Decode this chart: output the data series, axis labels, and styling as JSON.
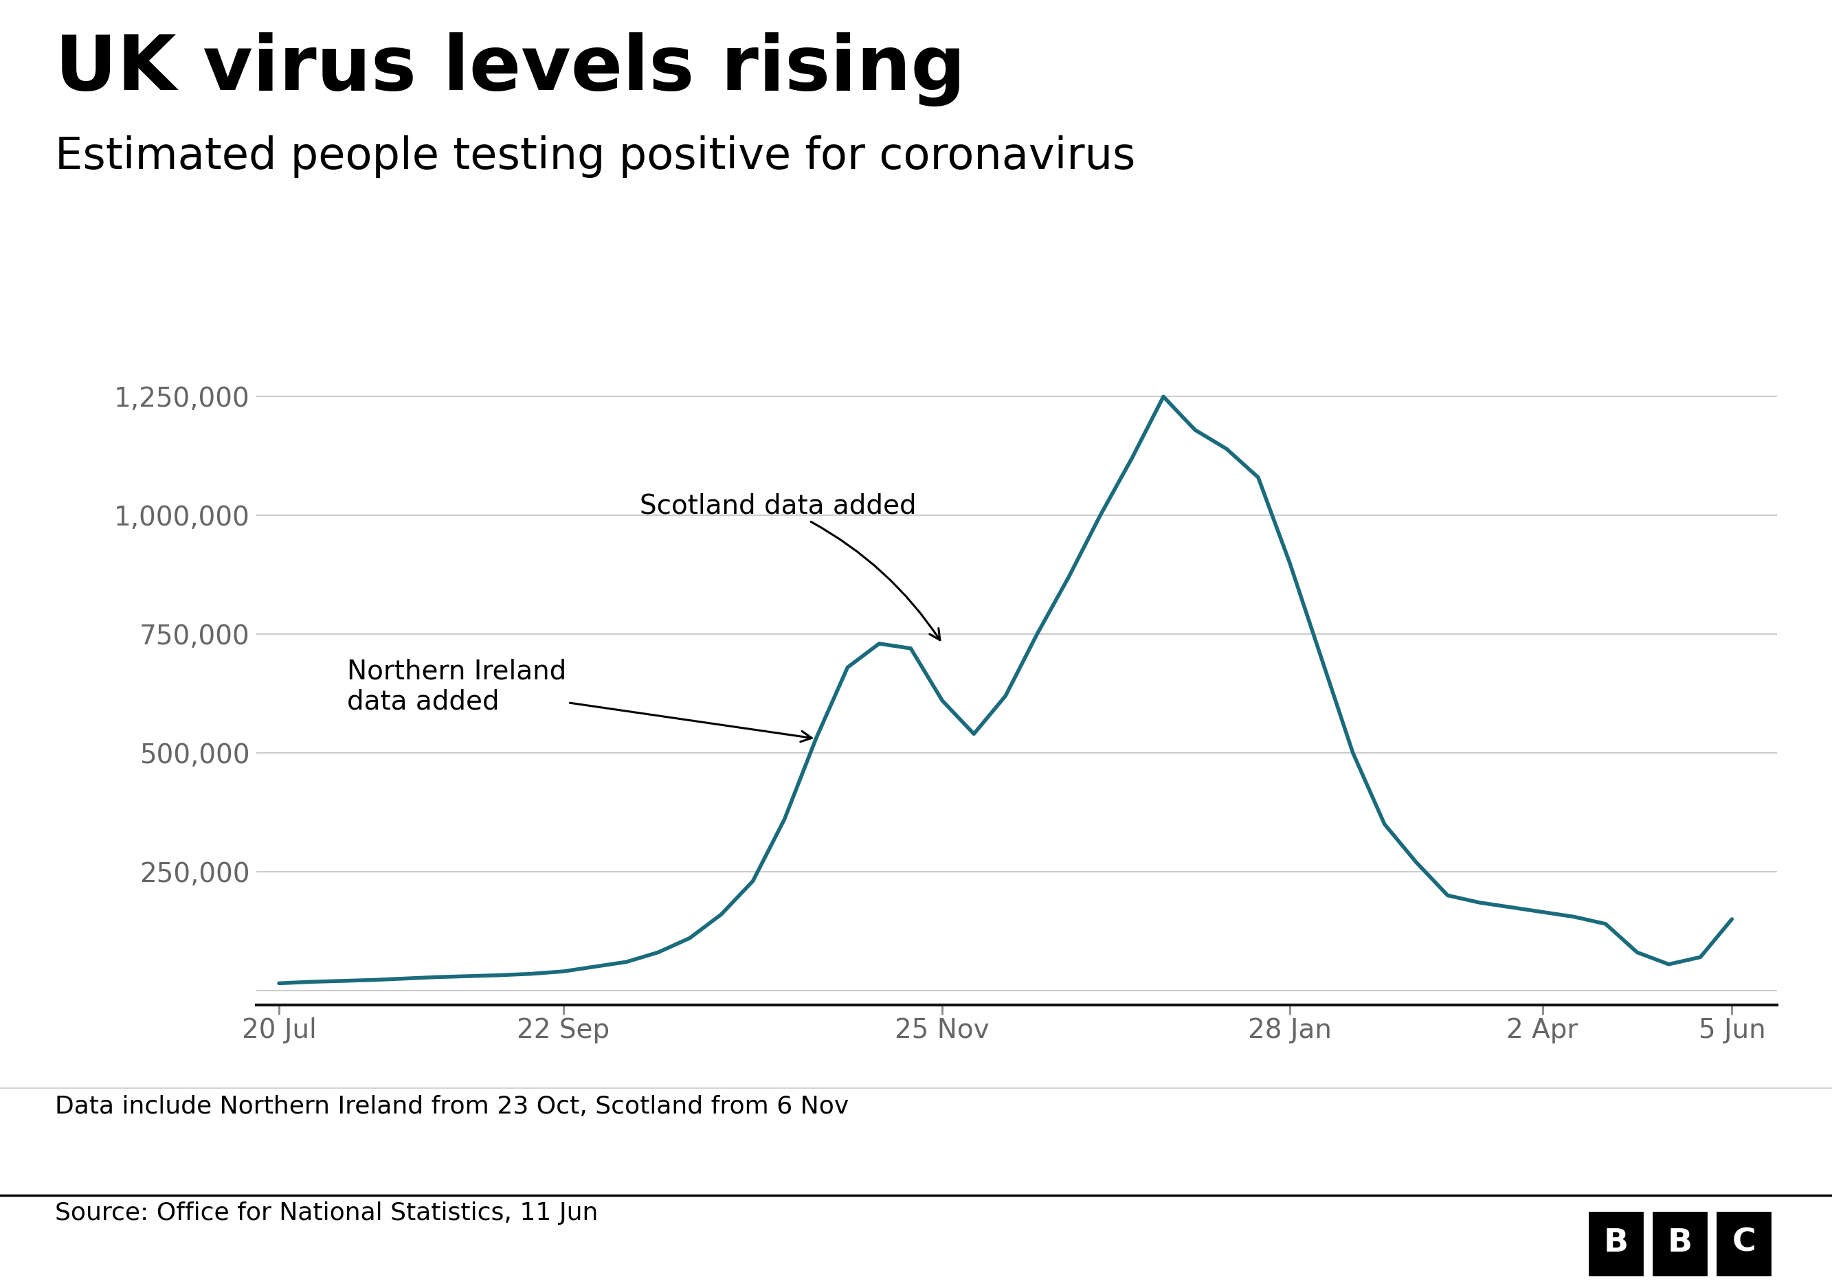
{
  "title": "UK virus levels rising",
  "subtitle": "Estimated people testing positive for coronavirus",
  "footnote": "Data include Northern Ireland from 23 Oct, Scotland from 6 Nov",
  "source": "Source: Office for National Statistics, 11 Jun",
  "line_color": "#1a6b7c",
  "background_color": "#ffffff",
  "yticks": [
    0,
    250000,
    500000,
    750000,
    1000000,
    1250000
  ],
  "ytick_labels": [
    "",
    "250,000",
    "500,000",
    "750,000",
    "1,000,000",
    "1,250,000"
  ],
  "xtick_labels": [
    "20 Jul",
    "22 Sep",
    "25 Nov",
    "28 Jan",
    "2 Apr",
    "5 Jun"
  ],
  "annotation1_text": "Scotland data added",
  "annotation2_text": "Northern Ireland\ndata added",
  "x_values": [
    0,
    7,
    14,
    21,
    28,
    35,
    42,
    49,
    56,
    63,
    70,
    77,
    84,
    91,
    98,
    105,
    112,
    119,
    126,
    133,
    140,
    147,
    154,
    161,
    168,
    175,
    182,
    189,
    196,
    203,
    210,
    217,
    224,
    231,
    238,
    245,
    252,
    259,
    266,
    273,
    280,
    287,
    294,
    301,
    308,
    315,
    322
  ],
  "y_values": [
    15000,
    18000,
    20000,
    22000,
    25000,
    28000,
    30000,
    32000,
    35000,
    40000,
    50000,
    60000,
    80000,
    110000,
    160000,
    230000,
    360000,
    530000,
    680000,
    730000,
    720000,
    610000,
    540000,
    620000,
    750000,
    870000,
    1000000,
    1120000,
    1250000,
    1180000,
    1140000,
    1080000,
    900000,
    700000,
    500000,
    350000,
    270000,
    200000,
    185000,
    175000,
    165000,
    155000,
    140000,
    80000,
    55000,
    70000,
    150000
  ],
  "xtick_positions": [
    0,
    63,
    147,
    224,
    280,
    322
  ],
  "ylim": [
    -30000,
    1380000
  ],
  "xlim": [
    -5,
    332
  ]
}
